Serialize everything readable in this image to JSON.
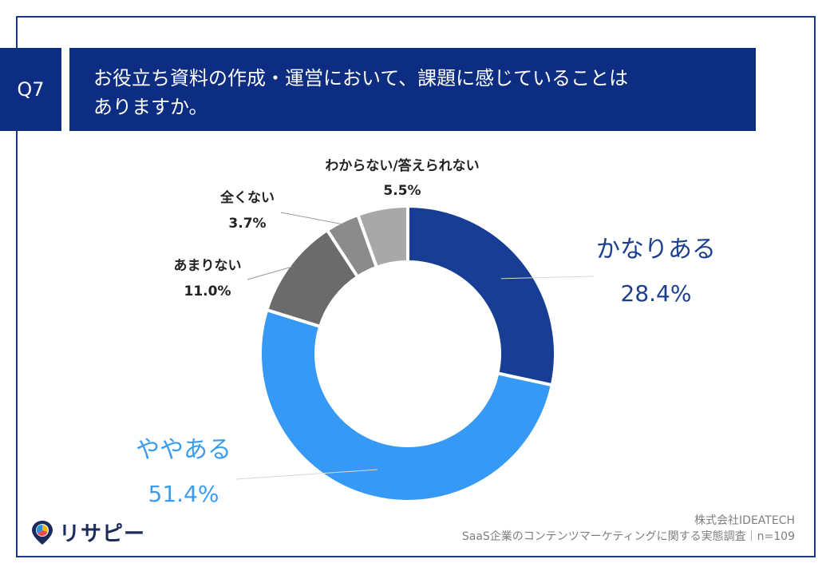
{
  "question": {
    "number": "Q7",
    "title_line1": "お役立ち資料の作成・運営において、課題に感じていることは",
    "title_line2": "ありますか。"
  },
  "chart_data": {
    "type": "pie",
    "donut": true,
    "categories": [
      "かなりある",
      "ややある",
      "あまりない",
      "全くない",
      "わからない/答えられない"
    ],
    "values": [
      28.4,
      51.4,
      11.0,
      3.7,
      5.5
    ],
    "value_labels": [
      "28.4%",
      "51.4%",
      "11.0%",
      "3.7%",
      "5.5%"
    ],
    "colors": [
      "#173d94",
      "#3599f5",
      "#6b6b6b",
      "#8b8b8b",
      "#a8a8a8"
    ],
    "label_colors": [
      "#1b3f8f",
      "#3a9cf0",
      "#222222",
      "#222222",
      "#222222"
    ],
    "title": ""
  },
  "footer": {
    "company": "株式会社IDEATECH",
    "survey": "SaaS企業のコンテンツマーケティングに関する実態調査｜n=109"
  },
  "logo": {
    "text": "リサピー"
  }
}
